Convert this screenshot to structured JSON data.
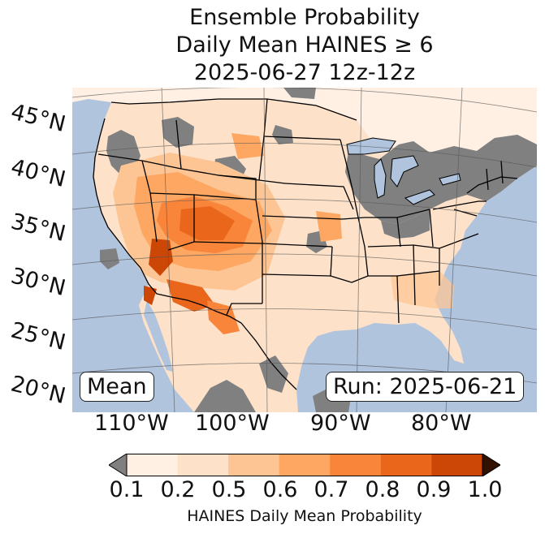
{
  "title": {
    "line1": "Ensemble Probability",
    "line2": "Daily Mean HAINES ≥ 6",
    "line3": "2025-06-27 12z-12z"
  },
  "map": {
    "type": "map",
    "projection": "Lambert conformal (CONUS)",
    "ocean_color": "#b0c4de",
    "no_data_color": "#808080",
    "lat_labels": [
      "45°N",
      "40°N",
      "35°N",
      "30°N",
      "25°N",
      "20°N"
    ],
    "lon_labels": [
      "110°W",
      "100°W",
      "90°W",
      "80°W"
    ],
    "stat_label": "Mean",
    "run_label": "Run: 2025-06-21",
    "highlights": [
      {
        "region": "Southwest / Four Corners",
        "level": "0.6-0.9"
      },
      {
        "region": "Southern Nevada / lower Colorado River",
        "level": "0.9-1.0"
      },
      {
        "region": "Southern Arizona / Baja",
        "level": "0.8-0.9"
      },
      {
        "region": "Great Lakes / Northeast",
        "level": "< 0.1"
      },
      {
        "region": "Southeast",
        "level": "0.2-0.5"
      }
    ]
  },
  "colorbar": {
    "label": "HAINES Daily Mean Probability",
    "ticks": [
      "0.1",
      "0.2",
      "0.5",
      "0.6",
      "0.7",
      "0.8",
      "0.9",
      "1.0"
    ],
    "under_color": "#808080",
    "over_color": "#331100",
    "colors": [
      "#fff0e3",
      "#fde1c8",
      "#fdc594",
      "#fda762",
      "#f8853a",
      "#e9661a",
      "#cc4706"
    ]
  }
}
